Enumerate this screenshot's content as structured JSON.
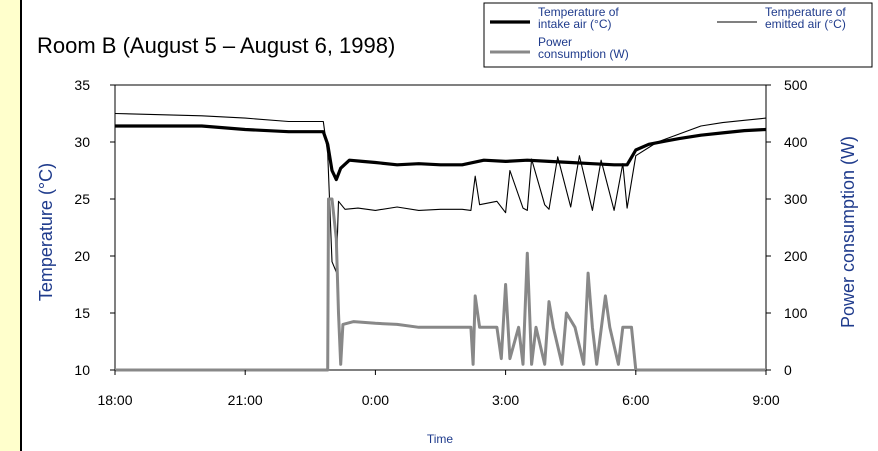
{
  "chart_data": {
    "type": "line",
    "title": "Room B (August 5 – August 6, 1998)",
    "xlabel": "Time",
    "ylabel_left": "Temperature (°C)",
    "ylabel_right": "Power consumption (W)",
    "x_ticks": [
      "18:00",
      "21:00",
      "0:00",
      "3:00",
      "6:00",
      "9:00"
    ],
    "y_left_ticks": [
      "10",
      "15",
      "20",
      "25",
      "30",
      "35"
    ],
    "y_right_ticks": [
      "0",
      "100",
      "200",
      "300",
      "400",
      "500"
    ],
    "xlim_hours": [
      18,
      33
    ],
    "ylim_left": [
      10,
      35
    ],
    "ylim_right": [
      0,
      500
    ],
    "legend": [
      {
        "label": "Temperature of intake air (°C)",
        "style": "thick-black"
      },
      {
        "label": "Temperature of emitted air (°C)",
        "style": "thin-black"
      },
      {
        "label": "Power consumption (W)",
        "style": "thick-gray"
      }
    ],
    "series": [
      {
        "name": "Temperature of intake air (°C)",
        "axis": "left",
        "color": "#000000",
        "points": [
          [
            18.0,
            31.4
          ],
          [
            19.0,
            31.4
          ],
          [
            20.0,
            31.4
          ],
          [
            21.0,
            31.1
          ],
          [
            22.0,
            30.9
          ],
          [
            22.8,
            30.9
          ],
          [
            22.9,
            29.8
          ],
          [
            23.0,
            27.5
          ],
          [
            23.1,
            26.7
          ],
          [
            23.2,
            27.7
          ],
          [
            23.4,
            28.4
          ],
          [
            23.7,
            28.3
          ],
          [
            24.0,
            28.2
          ],
          [
            24.5,
            28.0
          ],
          [
            25.0,
            28.1
          ],
          [
            25.5,
            28.0
          ],
          [
            26.0,
            28.0
          ],
          [
            26.5,
            28.4
          ],
          [
            27.0,
            28.3
          ],
          [
            27.5,
            28.4
          ],
          [
            28.0,
            28.3
          ],
          [
            28.5,
            28.2
          ],
          [
            29.0,
            28.1
          ],
          [
            29.5,
            28.0
          ],
          [
            29.8,
            28.0
          ],
          [
            30.0,
            29.3
          ],
          [
            30.3,
            29.8
          ],
          [
            30.7,
            30.1
          ],
          [
            31.0,
            30.3
          ],
          [
            31.5,
            30.6
          ],
          [
            32.0,
            30.8
          ],
          [
            32.5,
            31.0
          ],
          [
            33.0,
            31.1
          ]
        ]
      },
      {
        "name": "Temperature of emitted air (°C)",
        "axis": "left",
        "color": "#000000",
        "points": [
          [
            18.0,
            32.5
          ],
          [
            20.0,
            32.3
          ],
          [
            21.0,
            32.1
          ],
          [
            22.0,
            31.8
          ],
          [
            22.8,
            31.8
          ],
          [
            22.9,
            29.0
          ],
          [
            23.0,
            19.5
          ],
          [
            23.1,
            18.6
          ],
          [
            23.15,
            24.8
          ],
          [
            23.3,
            24.1
          ],
          [
            23.6,
            24.2
          ],
          [
            24.0,
            24.0
          ],
          [
            24.5,
            24.3
          ],
          [
            25.0,
            24.0
          ],
          [
            25.5,
            24.1
          ],
          [
            26.0,
            24.1
          ],
          [
            26.2,
            24.0
          ],
          [
            26.3,
            27.0
          ],
          [
            26.4,
            24.5
          ],
          [
            26.8,
            24.8
          ],
          [
            27.0,
            23.8
          ],
          [
            27.1,
            27.5
          ],
          [
            27.4,
            24.2
          ],
          [
            27.5,
            24.0
          ],
          [
            27.6,
            28.5
          ],
          [
            27.9,
            24.5
          ],
          [
            28.0,
            24.1
          ],
          [
            28.2,
            28.7
          ],
          [
            28.5,
            24.3
          ],
          [
            28.7,
            28.8
          ],
          [
            29.0,
            24.0
          ],
          [
            29.2,
            28.4
          ],
          [
            29.5,
            24.0
          ],
          [
            29.7,
            28.1
          ],
          [
            29.8,
            24.2
          ],
          [
            30.0,
            28.8
          ],
          [
            30.5,
            30.0
          ],
          [
            31.0,
            30.7
          ],
          [
            31.5,
            31.4
          ],
          [
            32.0,
            31.7
          ],
          [
            32.5,
            31.9
          ],
          [
            33.0,
            32.1
          ]
        ]
      },
      {
        "name": "Power consumption (W)",
        "axis": "right",
        "color": "#888888",
        "points": [
          [
            18.0,
            0
          ],
          [
            22.8,
            0
          ],
          [
            22.9,
            0
          ],
          [
            22.92,
            300
          ],
          [
            23.0,
            300
          ],
          [
            23.1,
            230
          ],
          [
            23.15,
            100
          ],
          [
            23.2,
            10
          ],
          [
            23.25,
            80
          ],
          [
            23.5,
            85
          ],
          [
            24.0,
            82
          ],
          [
            24.5,
            80
          ],
          [
            25.0,
            75
          ],
          [
            25.5,
            75
          ],
          [
            26.0,
            75
          ],
          [
            26.2,
            75
          ],
          [
            26.25,
            10
          ],
          [
            26.3,
            130
          ],
          [
            26.4,
            75
          ],
          [
            26.8,
            75
          ],
          [
            26.9,
            20
          ],
          [
            27.0,
            150
          ],
          [
            27.1,
            20
          ],
          [
            27.3,
            75
          ],
          [
            27.4,
            10
          ],
          [
            27.5,
            205
          ],
          [
            27.6,
            10
          ],
          [
            27.7,
            75
          ],
          [
            27.9,
            10
          ],
          [
            28.0,
            120
          ],
          [
            28.1,
            75
          ],
          [
            28.3,
            10
          ],
          [
            28.4,
            100
          ],
          [
            28.6,
            75
          ],
          [
            28.8,
            10
          ],
          [
            28.9,
            170
          ],
          [
            29.0,
            75
          ],
          [
            29.1,
            10
          ],
          [
            29.3,
            130
          ],
          [
            29.4,
            75
          ],
          [
            29.6,
            10
          ],
          [
            29.7,
            75
          ],
          [
            29.9,
            75
          ],
          [
            30.0,
            0
          ],
          [
            31.0,
            0
          ],
          [
            33.0,
            0
          ]
        ]
      }
    ],
    "grid": false
  }
}
